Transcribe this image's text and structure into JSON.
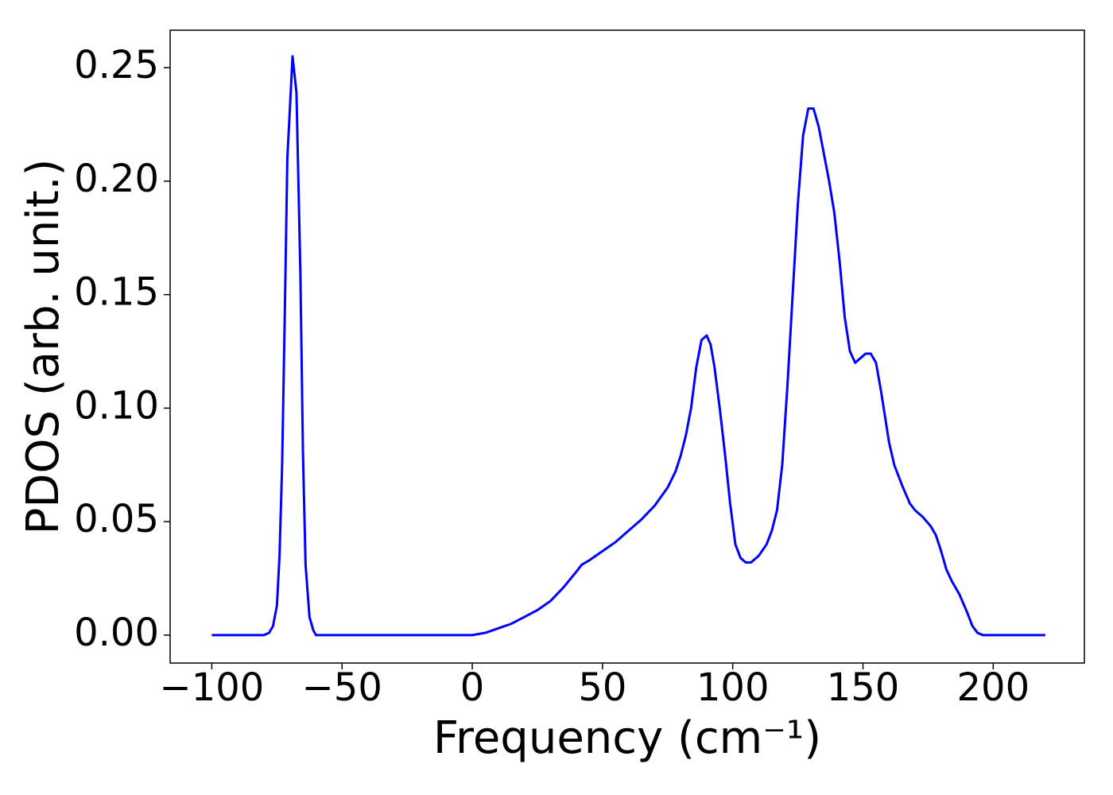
{
  "chart_data": {
    "type": "line",
    "x_label": "Frequency (cm⁻¹)",
    "y_label": "PDOS (arb. unit.)",
    "xlim": [
      -116,
      235
    ],
    "ylim": [
      -0.0123,
      0.2665
    ],
    "xticks": [
      {
        "value": -100,
        "label": "−100"
      },
      {
        "value": -50,
        "label": "−50"
      },
      0,
      50,
      100,
      150,
      200
    ],
    "yticks": [
      {
        "value": 0,
        "label": "0.00"
      },
      {
        "value": 0.05,
        "label": "0.05"
      },
      {
        "value": 0.1,
        "label": "0.10"
      },
      {
        "value": 0.15,
        "label": "0.15"
      },
      {
        "value": 0.2,
        "label": "0.20"
      },
      {
        "value": 0.25,
        "label": "0.25"
      }
    ],
    "grid": false,
    "series": [
      {
        "color": "#0000ff",
        "x": [
          -100,
          -80,
          -78,
          -76.5,
          -75,
          -74,
          -73,
          -72,
          -71,
          -69,
          -67.5,
          -66,
          -65,
          -64,
          -62.5,
          -61,
          -60,
          0,
          5,
          10,
          15,
          20,
          25,
          30,
          35,
          40,
          42,
          45,
          50,
          55,
          60,
          65,
          70,
          75,
          78,
          80,
          82,
          84,
          86,
          88,
          90,
          91.5,
          93,
          95,
          97,
          99,
          101,
          103,
          105,
          107,
          110,
          113,
          115,
          117,
          119,
          121,
          123,
          125,
          127,
          129,
          131,
          133,
          135,
          137,
          139,
          141,
          143,
          145,
          147,
          149,
          151,
          153,
          155,
          157,
          160,
          162,
          165,
          168,
          170,
          173,
          176,
          178,
          180,
          182,
          184,
          187,
          190,
          192,
          194,
          196,
          220
        ],
        "values": [
          0,
          0,
          0.001,
          0.004,
          0.013,
          0.035,
          0.075,
          0.14,
          0.21,
          0.255,
          0.239,
          0.16,
          0.08,
          0.031,
          0.008,
          0.002,
          0,
          0,
          0.001,
          0.003,
          0.005,
          0.008,
          0.011,
          0.015,
          0.021,
          0.028,
          0.031,
          0.033,
          0.037,
          0.041,
          0.046,
          0.051,
          0.057,
          0.065,
          0.072,
          0.079,
          0.088,
          0.1,
          0.118,
          0.13,
          0.132,
          0.128,
          0.118,
          0.1,
          0.08,
          0.058,
          0.04,
          0.034,
          0.032,
          0.032,
          0.035,
          0.04,
          0.046,
          0.055,
          0.075,
          0.11,
          0.15,
          0.19,
          0.22,
          0.232,
          0.232,
          0.224,
          0.212,
          0.2,
          0.186,
          0.165,
          0.14,
          0.125,
          0.12,
          0.122,
          0.124,
          0.124,
          0.12,
          0.107,
          0.085,
          0.075,
          0.066,
          0.058,
          0.055,
          0.052,
          0.048,
          0.044,
          0.037,
          0.029,
          0.024,
          0.018,
          0.01,
          0.004,
          0.001,
          0,
          0
        ]
      }
    ]
  }
}
